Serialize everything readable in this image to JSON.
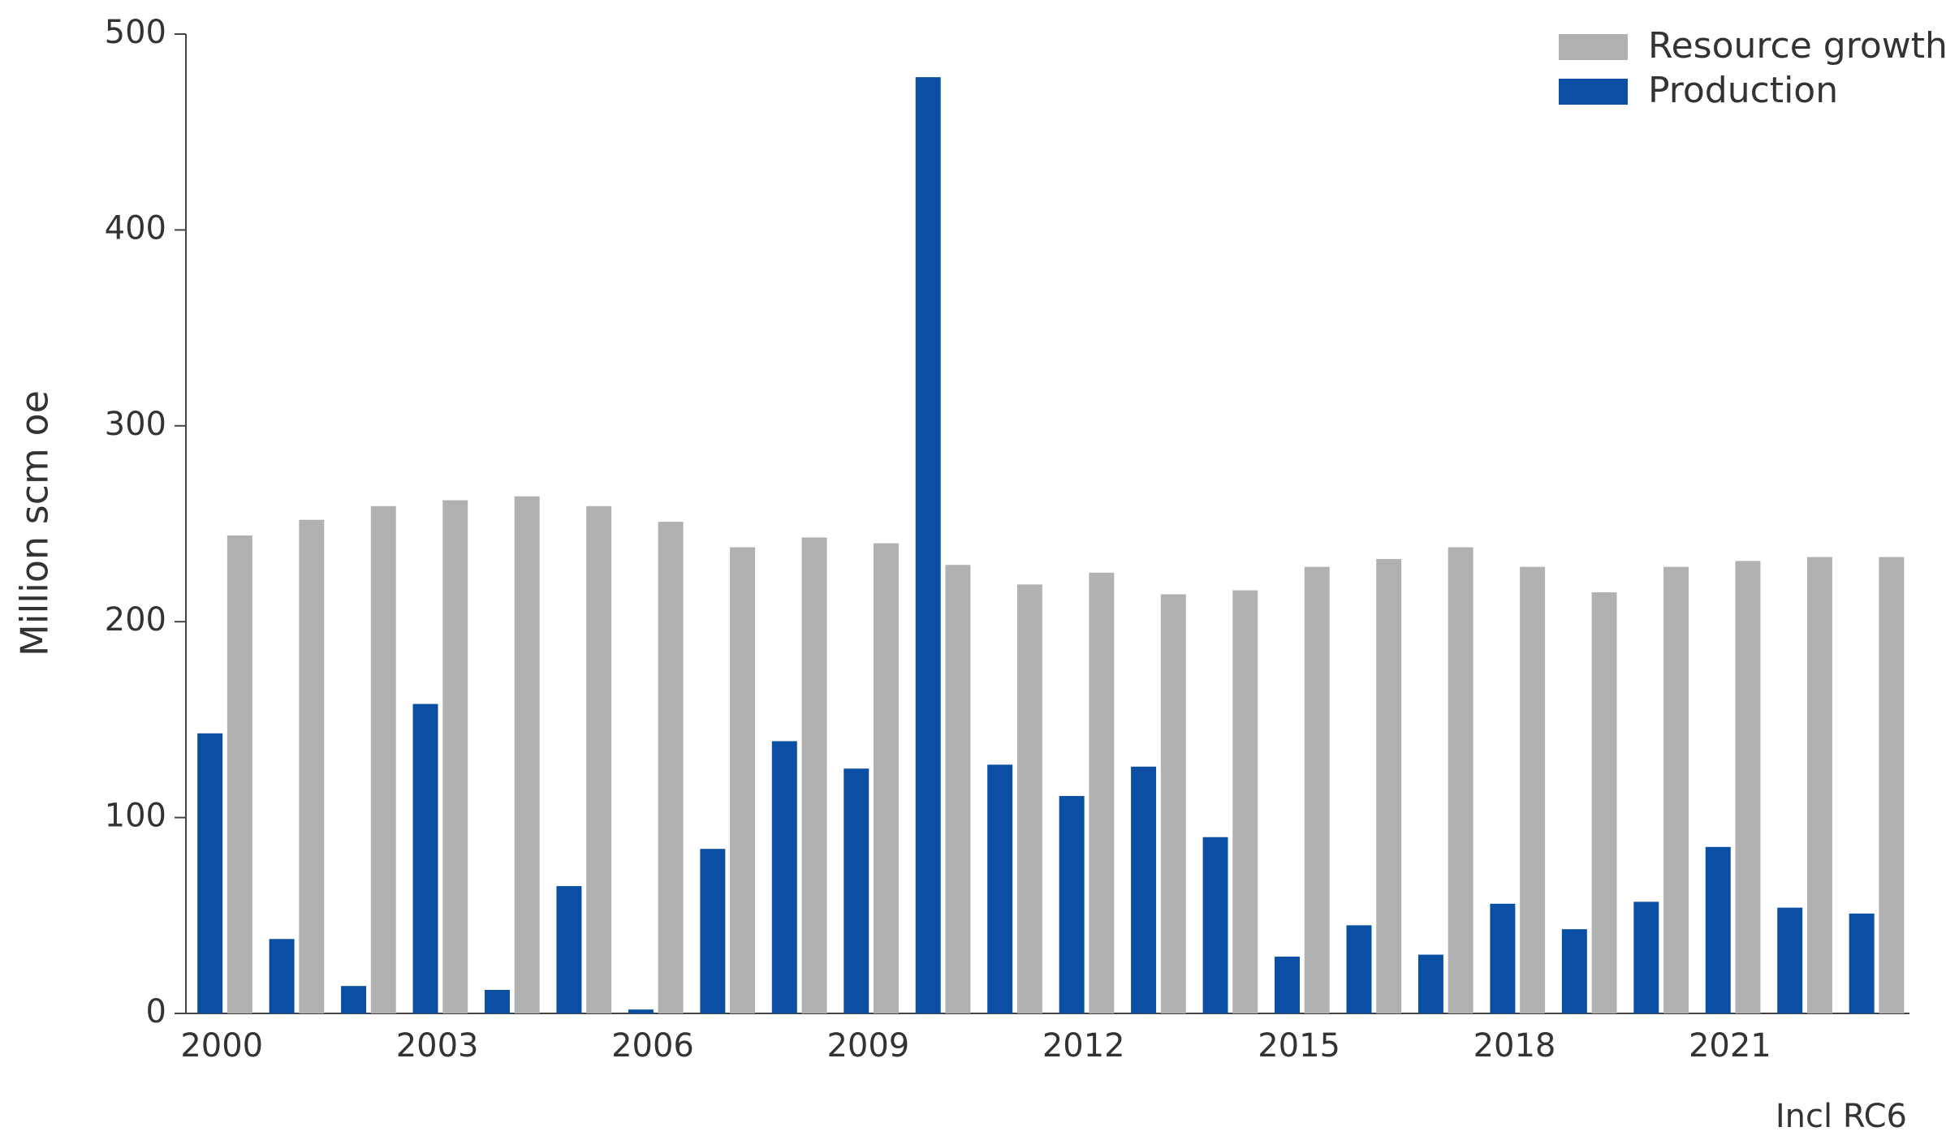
{
  "chart_data": {
    "type": "bar",
    "y_label": "Million scm oe",
    "note": "Incl RC6",
    "categories": [
      "2000",
      null,
      null,
      "2003",
      null,
      null,
      "2006",
      null,
      null,
      "2009",
      null,
      null,
      "2012",
      null,
      null,
      "2015",
      null,
      null,
      "2018",
      null,
      null,
      "2021",
      null,
      null
    ],
    "series": [
      {
        "name": "Production",
        "color": "#0a4fa3",
        "values": [
          143,
          38,
          14,
          158,
          12,
          65,
          2,
          84,
          139,
          125,
          478,
          127,
          111,
          126,
          90,
          29,
          45,
          30,
          56,
          43,
          57,
          85,
          54,
          51
        ]
      },
      {
        "name": "Resource growth",
        "color": "#b1b1b1",
        "values": [
          244,
          252,
          259,
          262,
          264,
          259,
          251,
          238,
          243,
          240,
          229,
          219,
          225,
          214,
          216,
          228,
          232,
          238,
          228,
          215,
          228,
          231,
          233,
          233
        ]
      }
    ],
    "ylim": [
      0,
      500
    ],
    "yticks": [
      0,
      100,
      200,
      300,
      400,
      500
    ],
    "legend": "top-right"
  }
}
